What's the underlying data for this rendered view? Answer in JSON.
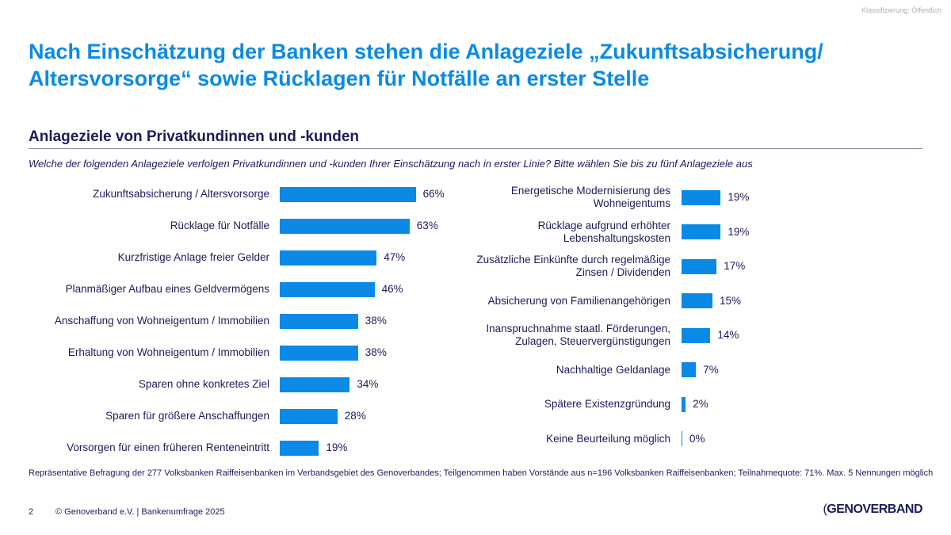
{
  "classification": "Klassifizierung: Öffentlich",
  "title": "Nach Einschätzung der Banken stehen die Anlageziele „Zukunftsabsicherung/ Altersvorsorge“ sowie Rücklagen für Notfälle an erster Stelle",
  "subtitle": "Anlageziele von Privatkundinnen und -kunden",
  "question": "Welche der folgenden Anlageziele verfolgen Privatkundinnen und -kunden Ihrer Einschätzung nach in erster Linie? Bitte wählen Sie bis zu fünf Anlageziele aus",
  "colors": {
    "bar": "#0a8ae6",
    "title": "#0a8ae6",
    "text": "#1c1c5a"
  },
  "chart_data": [
    {
      "type": "bar",
      "orientation": "horizontal",
      "unit": "%",
      "categories": [
        "Zukunftsabsicherung / Altersvorsorge",
        "Rücklage für Notfälle",
        "Kurzfristige Anlage freier Gelder",
        "Planmäßiger Aufbau eines Geldvermögens",
        "Anschaffung von Wohneigentum / Immobilien",
        "Erhaltung von Wohneigentum / Immobilien",
        "Sparen ohne konkretes Ziel",
        "Sparen für größere Anschaffungen",
        "Vorsorgen für einen früheren Renteneintritt"
      ],
      "values": [
        66,
        63,
        47,
        46,
        38,
        38,
        34,
        28,
        19
      ],
      "labels": [
        "66%",
        "63%",
        "47%",
        "46%",
        "38%",
        "38%",
        "34%",
        "28%",
        "19%"
      ]
    },
    {
      "type": "bar",
      "orientation": "horizontal",
      "unit": "%",
      "categories": [
        "Energetische Modernisierung des Wohneigentums",
        "Rücklage aufgrund erhöhter Lebenshaltungskosten",
        "Zusätzliche Einkünfte durch regelmäßige Zinsen / Dividenden",
        "Absicherung von Familienangehörigen",
        "Inanspruchnahme staatl. Förderungen, Zulagen, Steuervergünstigungen",
        "Nachhaltige Geldanlage",
        "Spätere Existenzgründung",
        "Keine Beurteilung möglich"
      ],
      "values": [
        19,
        19,
        17,
        15,
        14,
        7,
        2,
        0
      ],
      "labels": [
        "19%",
        "19%",
        "17%",
        "15%",
        "14%",
        "7%",
        "2%",
        "0%"
      ]
    }
  ],
  "footnote": "Repräsentative Befragung der 277 Volksbanken Raiffeisenbanken im Verbandsgebiet des Genoverbandes; Teilgenommen haben Vorstände aus n=196 Volksbanken Raiffeisenbanken; Teilnahmequote: 71%. Max. 5 Nennungen möglich",
  "footer": {
    "page": "2",
    "copyright": "© Genoverband e.V. | Bankenumfrage 2025",
    "logo": "GENOVERBAND"
  }
}
